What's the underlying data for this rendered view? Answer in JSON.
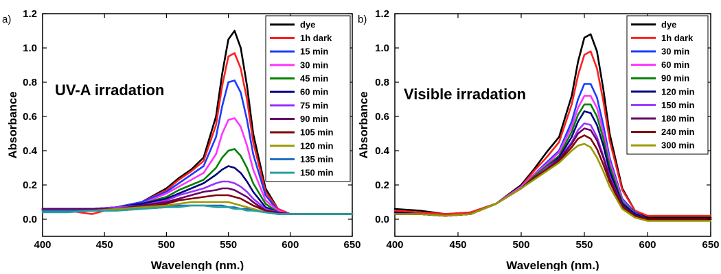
{
  "chart_data": [
    {
      "panel_label": "a)",
      "type": "line",
      "annotation": "UV-A irradation",
      "xlabel": "Wavelengh (nm.)",
      "ylabel": "Absorbance",
      "xlim": [
        400,
        650
      ],
      "ylim": [
        -0.1,
        1.2
      ],
      "xticks": [
        "400",
        "450",
        "500",
        "550",
        "600",
        "650"
      ],
      "yticks": [
        "0.0",
        "0.2",
        "0.4",
        "0.6",
        "0.8",
        "1.0",
        "1.2"
      ],
      "legend_position": "top-right",
      "grid": false,
      "x": [
        400,
        420,
        440,
        460,
        480,
        500,
        510,
        520,
        530,
        540,
        545,
        550,
        555,
        560,
        565,
        570,
        580,
        590,
        600,
        620,
        650
      ],
      "series": [
        {
          "name": "dye",
          "color": "#000000",
          "values": [
            0.06,
            0.06,
            0.06,
            0.07,
            0.1,
            0.18,
            0.24,
            0.29,
            0.36,
            0.6,
            0.85,
            1.05,
            1.1,
            1.0,
            0.78,
            0.5,
            0.18,
            0.06,
            0.03,
            0.03,
            0.03
          ]
        },
        {
          "name": "1h dark",
          "color": "#ff2020",
          "values": [
            0.06,
            0.05,
            0.03,
            0.07,
            0.1,
            0.17,
            0.23,
            0.28,
            0.34,
            0.55,
            0.78,
            0.95,
            0.97,
            0.88,
            0.7,
            0.45,
            0.16,
            0.06,
            0.03,
            0.03,
            0.03
          ]
        },
        {
          "name": "15 min",
          "color": "#1a3cff",
          "values": [
            0.06,
            0.06,
            0.06,
            0.07,
            0.1,
            0.16,
            0.21,
            0.26,
            0.31,
            0.48,
            0.66,
            0.8,
            0.81,
            0.74,
            0.58,
            0.38,
            0.14,
            0.05,
            0.03,
            0.03,
            0.03
          ]
        },
        {
          "name": "30 min",
          "color": "#ff33ff",
          "values": [
            0.06,
            0.06,
            0.06,
            0.07,
            0.09,
            0.15,
            0.19,
            0.23,
            0.27,
            0.38,
            0.5,
            0.58,
            0.59,
            0.54,
            0.43,
            0.29,
            0.11,
            0.05,
            0.03,
            0.03,
            0.03
          ]
        },
        {
          "name": "45 min",
          "color": "#008000",
          "values": [
            0.06,
            0.06,
            0.06,
            0.07,
            0.09,
            0.13,
            0.17,
            0.2,
            0.23,
            0.3,
            0.36,
            0.4,
            0.41,
            0.37,
            0.3,
            0.21,
            0.09,
            0.04,
            0.03,
            0.03,
            0.03
          ]
        },
        {
          "name": "60 min",
          "color": "#000080",
          "values": [
            0.06,
            0.06,
            0.06,
            0.07,
            0.09,
            0.12,
            0.15,
            0.18,
            0.21,
            0.26,
            0.29,
            0.31,
            0.3,
            0.27,
            0.22,
            0.16,
            0.07,
            0.04,
            0.03,
            0.03,
            0.03
          ]
        },
        {
          "name": "75 min",
          "color": "#9933ff",
          "values": [
            0.06,
            0.06,
            0.06,
            0.07,
            0.08,
            0.11,
            0.14,
            0.16,
            0.18,
            0.21,
            0.22,
            0.22,
            0.21,
            0.19,
            0.16,
            0.12,
            0.06,
            0.04,
            0.03,
            0.03,
            0.03
          ]
        },
        {
          "name": "90 min",
          "color": "#660066",
          "values": [
            0.06,
            0.06,
            0.06,
            0.06,
            0.08,
            0.1,
            0.12,
            0.14,
            0.16,
            0.17,
            0.18,
            0.18,
            0.17,
            0.15,
            0.13,
            0.1,
            0.05,
            0.04,
            0.03,
            0.03,
            0.03
          ]
        },
        {
          "name": "105 min",
          "color": "#800000",
          "values": [
            0.05,
            0.05,
            0.05,
            0.06,
            0.07,
            0.09,
            0.11,
            0.12,
            0.13,
            0.14,
            0.14,
            0.14,
            0.13,
            0.12,
            0.1,
            0.08,
            0.05,
            0.03,
            0.03,
            0.03,
            0.03
          ]
        },
        {
          "name": "120 min",
          "color": "#999900",
          "values": [
            0.05,
            0.05,
            0.05,
            0.06,
            0.07,
            0.08,
            0.09,
            0.1,
            0.1,
            0.1,
            0.1,
            0.1,
            0.09,
            0.08,
            0.07,
            0.06,
            0.04,
            0.03,
            0.03,
            0.03,
            0.03
          ]
        },
        {
          "name": "135 min",
          "color": "#1f6fbf",
          "values": [
            0.05,
            0.05,
            0.05,
            0.05,
            0.06,
            0.07,
            0.08,
            0.08,
            0.08,
            0.08,
            0.08,
            0.07,
            0.07,
            0.06,
            0.06,
            0.05,
            0.04,
            0.03,
            0.03,
            0.03,
            0.03
          ]
        },
        {
          "name": "150 min",
          "color": "#2aa0a0",
          "values": [
            0.04,
            0.04,
            0.05,
            0.05,
            0.06,
            0.07,
            0.07,
            0.08,
            0.08,
            0.07,
            0.07,
            0.07,
            0.06,
            0.06,
            0.05,
            0.05,
            0.04,
            0.03,
            0.03,
            0.03,
            0.03
          ]
        }
      ]
    },
    {
      "panel_label": "b)",
      "type": "line",
      "annotation": "Visible irradation",
      "xlabel": "Wavelengh (nm.)",
      "ylabel": "Absorbance",
      "xlim": [
        400,
        650
      ],
      "ylim": [
        -0.1,
        1.2
      ],
      "xticks": [
        "400",
        "450",
        "500",
        "550",
        "600",
        "650"
      ],
      "yticks": [
        "0.0",
        "0.2",
        "0.4",
        "0.6",
        "0.8",
        "1.0",
        "1.2"
      ],
      "legend_position": "top-right",
      "grid": false,
      "x": [
        400,
        420,
        440,
        460,
        480,
        500,
        510,
        520,
        530,
        540,
        545,
        550,
        555,
        560,
        565,
        570,
        580,
        590,
        600,
        620,
        650
      ],
      "series": [
        {
          "name": "dye",
          "color": "#000000",
          "values": [
            0.06,
            0.05,
            0.03,
            0.04,
            0.09,
            0.2,
            0.29,
            0.39,
            0.48,
            0.72,
            0.92,
            1.06,
            1.08,
            0.98,
            0.76,
            0.5,
            0.18,
            0.05,
            0.01,
            0.01,
            0.01
          ]
        },
        {
          "name": "1h dark",
          "color": "#ff2020",
          "values": [
            0.05,
            0.04,
            0.03,
            0.04,
            0.09,
            0.19,
            0.28,
            0.36,
            0.45,
            0.67,
            0.84,
            0.96,
            0.98,
            0.88,
            0.69,
            0.46,
            0.17,
            0.05,
            0.02,
            0.02,
            0.02
          ]
        },
        {
          "name": "30 min",
          "color": "#1a3cff",
          "values": [
            0.04,
            0.03,
            0.02,
            0.03,
            0.09,
            0.19,
            0.26,
            0.33,
            0.4,
            0.57,
            0.7,
            0.79,
            0.79,
            0.71,
            0.55,
            0.36,
            0.12,
            0.04,
            0.0,
            0.0,
            0.0
          ]
        },
        {
          "name": "60 min",
          "color": "#ff33ff",
          "values": [
            0.04,
            0.03,
            0.02,
            0.03,
            0.09,
            0.19,
            0.26,
            0.32,
            0.39,
            0.54,
            0.65,
            0.72,
            0.72,
            0.65,
            0.51,
            0.34,
            0.11,
            0.03,
            0.0,
            0.0,
            0.0
          ]
        },
        {
          "name": "90 min",
          "color": "#008000",
          "values": [
            0.04,
            0.03,
            0.02,
            0.03,
            0.09,
            0.18,
            0.25,
            0.31,
            0.37,
            0.51,
            0.61,
            0.67,
            0.67,
            0.6,
            0.47,
            0.31,
            0.1,
            0.03,
            0.0,
            0.0,
            0.0
          ]
        },
        {
          "name": "120 min",
          "color": "#000080",
          "values": [
            0.04,
            0.03,
            0.02,
            0.03,
            0.09,
            0.18,
            0.24,
            0.3,
            0.36,
            0.48,
            0.57,
            0.63,
            0.62,
            0.55,
            0.43,
            0.28,
            0.09,
            0.03,
            0.0,
            0.0,
            0.0
          ]
        },
        {
          "name": "150 min",
          "color": "#9933ff",
          "values": [
            0.03,
            0.03,
            0.02,
            0.03,
            0.09,
            0.18,
            0.24,
            0.3,
            0.35,
            0.45,
            0.52,
            0.56,
            0.55,
            0.48,
            0.37,
            0.25,
            0.08,
            0.02,
            0.0,
            0.0,
            0.0
          ]
        },
        {
          "name": "180 min",
          "color": "#660066",
          "values": [
            0.03,
            0.03,
            0.02,
            0.03,
            0.09,
            0.18,
            0.24,
            0.29,
            0.35,
            0.44,
            0.5,
            0.53,
            0.52,
            0.46,
            0.36,
            0.24,
            0.08,
            0.02,
            0.0,
            0.0,
            0.0
          ]
        },
        {
          "name": "240 min",
          "color": "#800000",
          "values": [
            0.03,
            0.03,
            0.02,
            0.03,
            0.09,
            0.18,
            0.24,
            0.29,
            0.34,
            0.42,
            0.47,
            0.49,
            0.47,
            0.41,
            0.32,
            0.22,
            0.07,
            0.02,
            0.0,
            0.0,
            0.0
          ]
        },
        {
          "name": "300 min",
          "color": "#999900",
          "values": [
            0.03,
            0.03,
            0.02,
            0.03,
            0.09,
            0.18,
            0.23,
            0.28,
            0.33,
            0.4,
            0.43,
            0.44,
            0.42,
            0.36,
            0.28,
            0.19,
            0.06,
            0.01,
            -0.01,
            -0.01,
            -0.01
          ]
        }
      ]
    }
  ]
}
